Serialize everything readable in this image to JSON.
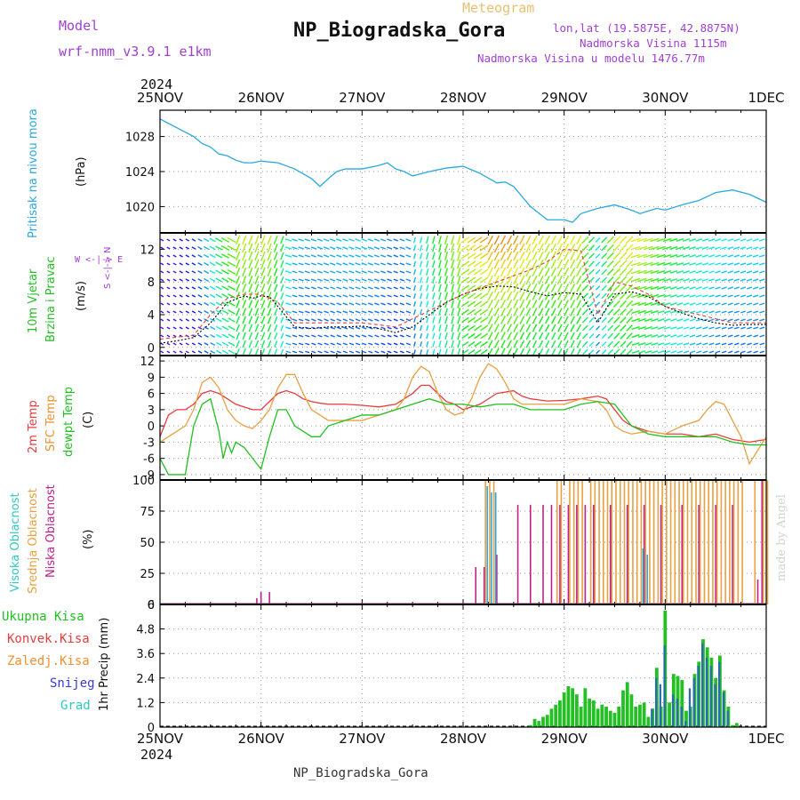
{
  "header": {
    "model_label": "Model",
    "model_name": "wrf-nmm_v3.9.1  e1km",
    "meteogram_label": "Meteogram",
    "station_title": "NP_Biogradska_Gora",
    "coords": "lon,lat (19.5875E, 42.8875N)",
    "elevation": "Nadmorska Visina 1115m",
    "model_elevation": "Nadmorska Visina u modelu 1476.77m",
    "year_top": "2024",
    "year_bottom": "2024",
    "footer_station": "NP_Biogradska_Gora",
    "credit": "made by Angel",
    "colors": {
      "purple": "#a040d0",
      "gold": "#e8c070",
      "cyan": "#2aa8e0",
      "green": "#22c022",
      "red": "#e83c3c",
      "orange": "#f09030",
      "blue": "#3838e0",
      "teal": "#30c8c0",
      "magenta": "#c0208c"
    }
  },
  "panels": {
    "pressure": {
      "label": "Pritisak na nivou mora",
      "unit": "(hPa)"
    },
    "wind": {
      "label1": "10m Vjetar",
      "label2": "Brzina i Pravac",
      "unit": "(m/s)",
      "compass": "W <-|-> E",
      "compass_ns": "S <-|-> N"
    },
    "temp": {
      "label1": "2m Temp",
      "label2": "SFC Temp",
      "label3": "dewpt Temp",
      "unit": "(C)"
    },
    "cloud": {
      "label1": "Visoka Oblacnost",
      "label2": "Srednja Oblacnost",
      "label3": "Niska Oblacnost",
      "unit": "(%)"
    },
    "precip": {
      "legend": [
        "Ukupna Kisa",
        "Konvek.Kisa",
        "Zaledj.Kisa",
        "Snijeg",
        "Grad"
      ],
      "unit": "1hr Precip (mm)"
    }
  },
  "chart_data": [
    {
      "type": "line",
      "title": "",
      "ylabel": "(hPa)",
      "xlabels": [
        "25NOV",
        "26NOV",
        "27NOV",
        "28NOV",
        "29NOV",
        "30NOV",
        "1DEC"
      ],
      "ylim": [
        1017,
        1031
      ],
      "yticks": [
        1020,
        1024,
        1028
      ],
      "series": [
        {
          "color": "#2aa8e0",
          "x": [
            0,
            2,
            4,
            6,
            8,
            10,
            12,
            14,
            16,
            18,
            20,
            22,
            24,
            28,
            32,
            36,
            38,
            40,
            42,
            44,
            48,
            52,
            54,
            56,
            58,
            60,
            64,
            68,
            72,
            76,
            80,
            82,
            84,
            88,
            92,
            96,
            98,
            100,
            104,
            108,
            112,
            114,
            116,
            118,
            120,
            124,
            128,
            132,
            136,
            140,
            144
          ],
          "values": [
            1030,
            1029.5,
            1029,
            1028.5,
            1028,
            1027.2,
            1026.8,
            1026,
            1025.8,
            1025.3,
            1025,
            1025,
            1025.2,
            1025,
            1024.3,
            1023.2,
            1022.3,
            1023.2,
            1024,
            1024.3,
            1024.3,
            1024.7,
            1025,
            1024.3,
            1024,
            1023.5,
            1024,
            1024.4,
            1024.6,
            1023.8,
            1022.7,
            1022.8,
            1022.3,
            1020,
            1018.5,
            1018.5,
            1018.2,
            1019.2,
            1019.8,
            1020.2,
            1019.6,
            1019.2,
            1019.5,
            1019.8,
            1019.6,
            1020.2,
            1020.7,
            1021.6,
            1021.9,
            1021.4,
            1020.5
          ]
        }
      ]
    },
    {
      "type": "line",
      "title": "",
      "ylabel": "(m/s)",
      "ylim": [
        -1,
        14
      ],
      "yticks": [
        0,
        4,
        8,
        12
      ],
      "series": [
        {
          "name": "speed",
          "color": "#000000",
          "x": [
            0,
            4,
            8,
            12,
            16,
            20,
            22,
            24,
            26,
            28,
            32,
            36,
            40,
            44,
            48,
            52,
            56,
            60,
            64,
            68,
            72,
            76,
            80,
            84,
            88,
            92,
            96,
            100,
            104,
            108,
            112,
            116,
            120,
            124,
            128,
            132,
            136,
            140,
            144
          ],
          "values": [
            0.5,
            0.8,
            1.2,
            3,
            5.5,
            6.3,
            6,
            6.3,
            6.2,
            5,
            2.5,
            2.3,
            2.5,
            2.5,
            2.6,
            2.3,
            1.8,
            2.5,
            4,
            5.5,
            6.5,
            7.2,
            7.5,
            7.4,
            6.8,
            6.3,
            6.7,
            6.5,
            3,
            6.5,
            6.8,
            6.2,
            5,
            4.2,
            3.5,
            3,
            2.7,
            2.8,
            2.8
          ]
        },
        {
          "name": "gust",
          "color": "#e83c3c",
          "x": [
            0,
            8,
            12,
            16,
            20,
            24,
            28,
            32,
            40,
            48,
            56,
            64,
            72,
            80,
            88,
            92,
            96,
            100,
            104,
            108,
            112,
            116,
            120,
            128,
            136,
            144
          ],
          "values": [
            1,
            1.5,
            4,
            6,
            6.5,
            6.5,
            5.5,
            3,
            3,
            3,
            2.5,
            4.5,
            6.5,
            8,
            9.5,
            10.5,
            12,
            11.8,
            4,
            8,
            7.5,
            6.5,
            5,
            4,
            3,
            3
          ]
        }
      ]
    },
    {
      "type": "line",
      "title": "",
      "ylabel": "(C)",
      "ylim": [
        -10,
        13
      ],
      "yticks": [
        -9,
        -6,
        -3,
        0,
        3,
        6,
        9,
        12
      ],
      "series": [
        {
          "name": "2m Temp",
          "color": "#e83c3c",
          "x": [
            0,
            2,
            4,
            6,
            8,
            10,
            12,
            14,
            16,
            18,
            20,
            22,
            24,
            26,
            28,
            30,
            32,
            34,
            36,
            38,
            40,
            44,
            48,
            52,
            56,
            60,
            62,
            64,
            66,
            68,
            70,
            72,
            76,
            80,
            84,
            86,
            88,
            90,
            92,
            96,
            100,
            104,
            106,
            108,
            110,
            112,
            116,
            120,
            124,
            128,
            132,
            136,
            140,
            144
          ],
          "values": [
            -2,
            2,
            3,
            3,
            4,
            6,
            6.5,
            6,
            5,
            4,
            3.5,
            3,
            3,
            4.5,
            6,
            6.5,
            6,
            5,
            4.5,
            4.2,
            4,
            4,
            3.8,
            3.5,
            4,
            6,
            7.5,
            7.5,
            6,
            4.5,
            4,
            3,
            4,
            6,
            6.5,
            5.5,
            5,
            4.8,
            4.6,
            4.7,
            5,
            5.5,
            5,
            3,
            1,
            0,
            -1,
            -1.5,
            -1.5,
            -2,
            -1.5,
            -2.5,
            -3,
            -2.5
          ]
        },
        {
          "name": "SFC Temp",
          "color": "#e8a040",
          "x": [
            0,
            4,
            6,
            8,
            10,
            12,
            14,
            16,
            18,
            20,
            22,
            24,
            26,
            28,
            30,
            32,
            34,
            36,
            38,
            40,
            44,
            48,
            52,
            56,
            58,
            60,
            62,
            64,
            66,
            68,
            70,
            72,
            74,
            76,
            78,
            80,
            82,
            84,
            86,
            88,
            92,
            96,
            100,
            104,
            106,
            108,
            110,
            112,
            116,
            120,
            124,
            128,
            130,
            132,
            134,
            136,
            138,
            140,
            144
          ],
          "values": [
            -3,
            -1,
            0,
            3,
            8,
            9,
            7,
            3,
            1,
            0,
            -0.5,
            1,
            3,
            7,
            9.5,
            9.5,
            6,
            3,
            2,
            1,
            1,
            1,
            2,
            3,
            5,
            9,
            11,
            10,
            6,
            3,
            2,
            2.5,
            5,
            9,
            11.5,
            10.5,
            8,
            5,
            4,
            4,
            4,
            4,
            5,
            4.5,
            3,
            0,
            -1,
            -1.5,
            -1,
            -1.5,
            0,
            1,
            3,
            4.5,
            4,
            1,
            -2,
            -7,
            -2
          ]
        },
        {
          "name": "dewpt Temp",
          "color": "#22c022",
          "x": [
            0,
            2,
            4,
            6,
            8,
            10,
            12,
            14,
            15,
            16,
            17,
            18,
            20,
            22,
            24,
            26,
            28,
            30,
            32,
            34,
            36,
            38,
            40,
            44,
            48,
            52,
            56,
            60,
            64,
            68,
            72,
            76,
            80,
            84,
            88,
            92,
            96,
            100,
            104,
            108,
            112,
            116,
            120,
            124,
            128,
            132,
            136,
            140,
            144
          ],
          "values": [
            -6,
            -9,
            -9,
            -9,
            0,
            4,
            5,
            -1,
            -6,
            -3,
            -5,
            -3,
            -4,
            -6,
            -8,
            -2,
            3,
            3,
            0,
            -1,
            -2,
            -2,
            0,
            1,
            2,
            2,
            3,
            4,
            5,
            4,
            4,
            3.5,
            4,
            4,
            3,
            3,
            3,
            4,
            4.5,
            4,
            0,
            -1.5,
            -2,
            -2,
            -2,
            -2,
            -3,
            -3.5,
            -3.5
          ]
        }
      ]
    },
    {
      "type": "bar",
      "title": "",
      "ylabel": "(%)",
      "ylim": [
        0,
        100
      ],
      "yticks": [
        0,
        25,
        50,
        75,
        100
      ],
      "series": [
        {
          "name": "Niska Oblacnost",
          "color": "#c0208c",
          "x": [
            23,
            24,
            26,
            75,
            77,
            80,
            85,
            88,
            91,
            93,
            95,
            97,
            99,
            101,
            103,
            107,
            111,
            115,
            119,
            124,
            128,
            132,
            136,
            142,
            143
          ],
          "values": [
            5,
            10,
            10,
            30,
            30,
            40,
            80,
            80,
            80,
            80,
            80,
            80,
            80,
            80,
            80,
            80,
            80,
            80,
            80,
            80,
            80,
            80,
            80,
            20,
            100
          ]
        },
        {
          "name": "Srednja Oblacnost",
          "color": "#e8a040",
          "x": [
            77,
            78,
            79,
            94,
            95,
            97,
            98,
            99,
            100,
            102,
            103,
            104,
            105,
            106,
            107,
            108,
            109,
            110,
            111,
            112,
            113,
            114,
            115,
            116,
            117,
            118,
            119,
            120,
            121,
            122,
            123,
            124,
            125,
            126,
            127,
            128,
            129,
            130,
            131,
            132,
            133,
            134,
            135,
            136,
            137,
            138,
            141,
            143,
            144
          ],
          "values": [
            100,
            100,
            100,
            100,
            100,
            100,
            100,
            100,
            100,
            100,
            100,
            100,
            100,
            100,
            100,
            100,
            100,
            100,
            100,
            100,
            100,
            100,
            100,
            100,
            100,
            100,
            100,
            100,
            100,
            100,
            100,
            100,
            100,
            100,
            100,
            100,
            100,
            100,
            100,
            100,
            100,
            100,
            100,
            100,
            100,
            100,
            100,
            100,
            100
          ]
        },
        {
          "name": "Visoka Oblacnost",
          "color": "#2aa8e0",
          "x": [
            78,
            79,
            80,
            115,
            116
          ],
          "values": [
            95,
            90,
            90,
            45,
            40
          ]
        }
      ]
    },
    {
      "type": "bar",
      "title": "",
      "ylabel": "1hr Precip (mm)",
      "ylim": [
        0,
        6
      ],
      "yticks": [
        0,
        1.2,
        2.4,
        3.6,
        4.8,
        6
      ],
      "xlabels": [
        "25NOV",
        "26NOV",
        "27NOV",
        "28NOV",
        "29NOV",
        "30NOV",
        "1DEC"
      ],
      "series": [
        {
          "name": "Ukupna Kisa",
          "color": "#22c022",
          "x": [
            88,
            89,
            90,
            91,
            92,
            93,
            94,
            95,
            96,
            97,
            98,
            99,
            100,
            101,
            102,
            103,
            104,
            105,
            106,
            107,
            108,
            109,
            110,
            111,
            112,
            113,
            114,
            115,
            116,
            117,
            118,
            119,
            120,
            121,
            122,
            123,
            124,
            125,
            126,
            127,
            128,
            129,
            130,
            131,
            132,
            133,
            134,
            135,
            136,
            137
          ],
          "values": [
            0.1,
            0.4,
            0.3,
            0.5,
            0.6,
            0.9,
            1.1,
            1.3,
            1.7,
            2.0,
            1.9,
            1.6,
            1.0,
            1.9,
            1.4,
            1.3,
            0.9,
            1.1,
            1.0,
            0.8,
            0.7,
            1.0,
            1.8,
            2.2,
            1.6,
            1.0,
            1.1,
            1.2,
            0.5,
            0.9,
            2.9,
            1.0,
            5.7,
            1.2,
            2.6,
            2.5,
            2.3,
            0.8,
            1.0,
            2.6,
            3.2,
            4.3,
            3.9,
            3.4,
            2.4,
            3.5,
            1.8,
            1.0,
            0.1,
            0.2
          ]
        },
        {
          "name": "Snijeg",
          "color": "#3838e0",
          "x": [
            117,
            118,
            119,
            120,
            122,
            123,
            124,
            125,
            126,
            127,
            128,
            129,
            130,
            131,
            132,
            133,
            134,
            135
          ],
          "values": [
            0.9,
            2.4,
            2.1,
            4.0,
            1.6,
            1.4,
            1.0,
            0.3,
            1.9,
            2.4,
            3.0,
            4.1,
            3.4,
            3.0,
            2.1,
            3.2,
            1.7,
            0.8
          ]
        }
      ]
    }
  ]
}
